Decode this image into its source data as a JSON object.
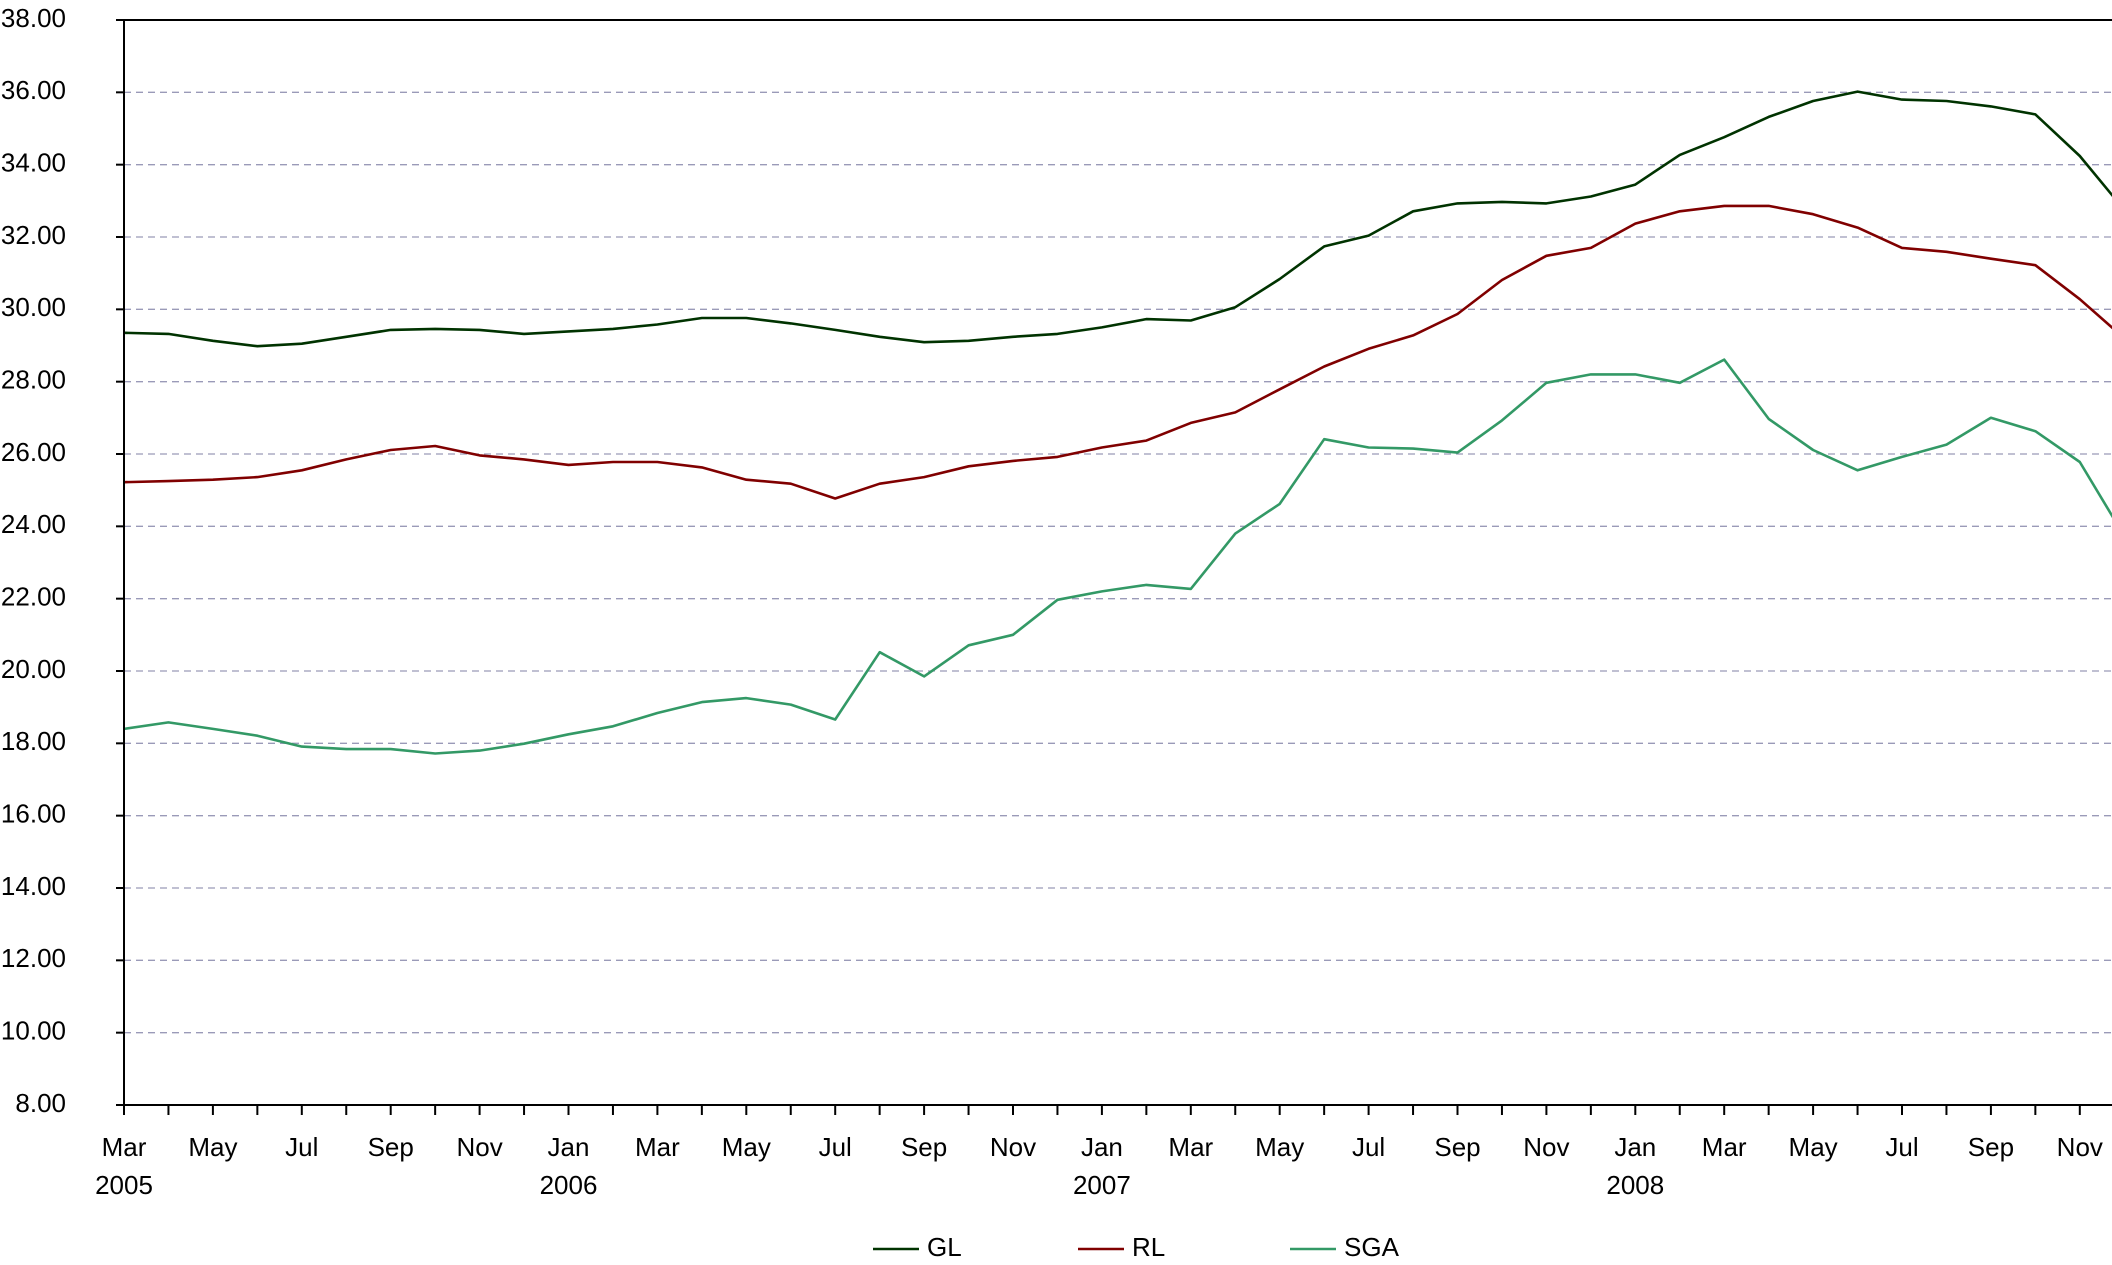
{
  "chart_data": {
    "type": "line",
    "categories": [
      [
        "Mar",
        "2005"
      ],
      null,
      [
        "May"
      ],
      null,
      [
        "Jul"
      ],
      null,
      [
        "Sep"
      ],
      null,
      [
        "Nov"
      ],
      null,
      [
        "Jan",
        "2006"
      ],
      null,
      [
        "Mar"
      ],
      null,
      [
        "May"
      ],
      null,
      [
        "Jul"
      ],
      null,
      [
        "Sep"
      ],
      null,
      [
        "Nov"
      ],
      null,
      [
        "Jan",
        "2007"
      ],
      null,
      [
        "Mar"
      ],
      null,
      [
        "May"
      ],
      null,
      [
        "Jul"
      ],
      null,
      [
        "Sep"
      ],
      null,
      [
        "Nov"
      ],
      null,
      [
        "Jan",
        "2008"
      ],
      null,
      [
        "Mar"
      ],
      null,
      [
        "May"
      ],
      null,
      [
        "Jul"
      ],
      null,
      [
        "Sep"
      ],
      null,
      [
        "Nov"
      ],
      null
    ],
    "series": [
      {
        "name": "GL",
        "color": "#003300",
        "values": [
          29.35,
          29.32,
          29.13,
          28.98,
          29.05,
          29.24,
          29.43,
          29.46,
          29.43,
          29.32,
          29.39,
          29.46,
          29.58,
          29.76,
          29.76,
          29.61,
          29.43,
          29.24,
          29.09,
          29.13,
          29.24,
          29.32,
          29.5,
          29.73,
          29.69,
          30.06,
          30.84,
          31.74,
          32.04,
          32.71,
          32.93,
          32.97,
          32.93,
          33.12,
          33.45,
          34.27,
          34.76,
          35.32,
          35.76,
          36.02,
          35.8,
          35.76,
          35.61,
          35.39,
          34.24,
          32.75
        ]
      },
      {
        "name": "RL",
        "color": "#800000",
        "values": [
          25.22,
          25.25,
          25.29,
          25.36,
          25.55,
          25.85,
          26.11,
          26.22,
          25.96,
          25.85,
          25.7,
          25.78,
          25.78,
          25.63,
          25.29,
          25.18,
          24.77,
          25.18,
          25.36,
          25.66,
          25.81,
          25.92,
          26.18,
          26.37,
          26.86,
          27.15,
          27.79,
          28.42,
          28.91,
          29.28,
          29.87,
          30.81,
          31.48,
          31.7,
          32.37,
          32.71,
          32.86,
          32.86,
          32.63,
          32.26,
          31.7,
          31.59,
          31.4,
          31.22,
          30.28,
          29.2
        ]
      },
      {
        "name": "SGA",
        "color": "#339966",
        "values": [
          18.4,
          18.58,
          18.4,
          18.21,
          17.91,
          17.84,
          17.84,
          17.72,
          17.8,
          17.99,
          18.25,
          18.47,
          18.84,
          19.14,
          19.25,
          19.07,
          18.66,
          20.52,
          19.85,
          20.71,
          21.0,
          21.97,
          22.2,
          22.38,
          22.27,
          23.8,
          24.62,
          26.41,
          26.18,
          26.15,
          26.04,
          26.93,
          27.97,
          28.2,
          28.2,
          27.97,
          28.61,
          26.97,
          26.11,
          25.55,
          25.92,
          26.26,
          27.0,
          26.63,
          25.78,
          23.73
        ]
      }
    ],
    "ylim": [
      8,
      38
    ],
    "yticks": [
      {
        "value": 8,
        "label": "8.00"
      },
      {
        "value": 10,
        "label": "10.00"
      },
      {
        "value": 12,
        "label": "12.00"
      },
      {
        "value": 14,
        "label": "14.00"
      },
      {
        "value": 16,
        "label": "16.00"
      },
      {
        "value": 18,
        "label": "18.00"
      },
      {
        "value": 20,
        "label": "20.00"
      },
      {
        "value": 22,
        "label": "22.00"
      },
      {
        "value": 24,
        "label": "24.00"
      },
      {
        "value": 26,
        "label": "26.00"
      },
      {
        "value": 28,
        "label": "28.00"
      },
      {
        "value": 30,
        "label": "30.00"
      },
      {
        "value": 32,
        "label": "32.00"
      },
      {
        "value": 34,
        "label": "34.00"
      },
      {
        "value": 36,
        "label": "36.00"
      },
      {
        "value": 38,
        "label": "38.00"
      }
    ],
    "grid": true,
    "legend": "bottom"
  }
}
